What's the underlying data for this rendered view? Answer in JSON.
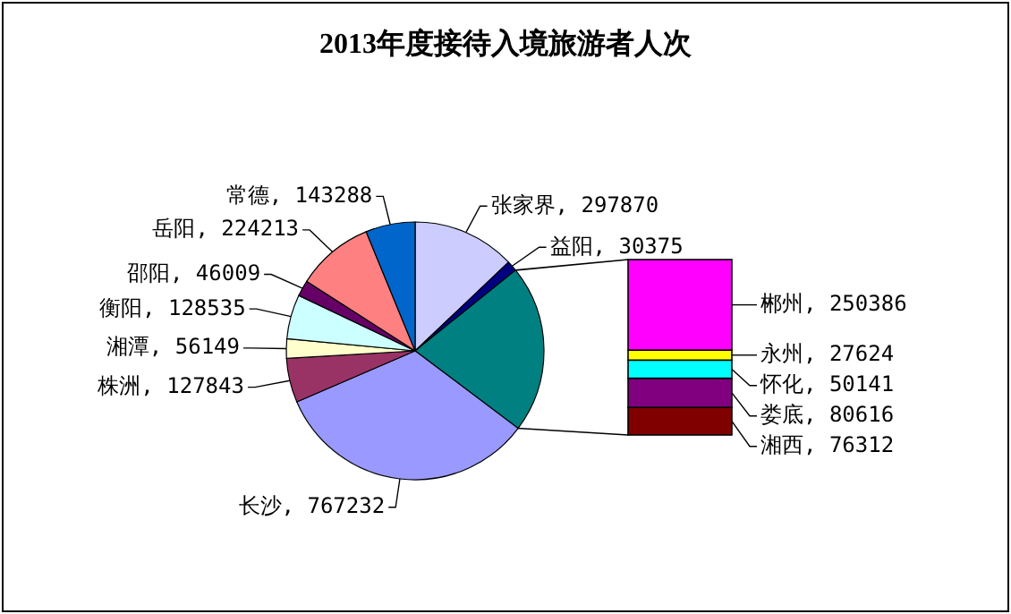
{
  "chart_data": [
    {
      "type": "pie",
      "title": "2013年度接待入境旅游者人次",
      "categories": [
        "张家界",
        "益阳",
        null,
        "长沙",
        "株洲",
        "湘潭",
        "衡阳",
        "邵阳",
        "岳阳",
        "常德"
      ],
      "values": [
        297870,
        30375,
        485079,
        767232,
        127843,
        56149,
        128535,
        46009,
        224213,
        143288
      ],
      "colors": [
        "#ccccff",
        "#000080",
        "#008080",
        "#9999ff",
        "#993366",
        "#ffffcc",
        "#ccffff",
        "#660066",
        "#ff8080",
        "#0066cc"
      ],
      "value_labels": [
        ", 297870",
        ", 30375",
        null,
        ", 767232",
        ", 127843",
        ", 56149",
        ", 128535",
        ", 46009",
        ", 224213",
        ", 143288"
      ]
    },
    {
      "type": "bar",
      "stacked": true,
      "categories": [
        null
      ],
      "series": [
        {
          "color": "#800000",
          "values": [
            76312
          ],
          "value_labels": [
            "湘西, 76312"
          ]
        },
        {
          "color": "#800080",
          "values": [
            80616
          ],
          "value_labels": [
            "娄底, 80616"
          ]
        },
        {
          "color": "#00ffff",
          "values": [
            50141
          ],
          "value_labels": [
            "怀化, 50141"
          ]
        },
        {
          "color": "#ffff00",
          "values": [
            27624
          ],
          "value_labels": [
            "永州, 27624"
          ]
        },
        {
          "color": "#ff00ff",
          "values": [
            250386
          ],
          "value_labels": [
            "郴州, 250386"
          ]
        }
      ]
    }
  ]
}
